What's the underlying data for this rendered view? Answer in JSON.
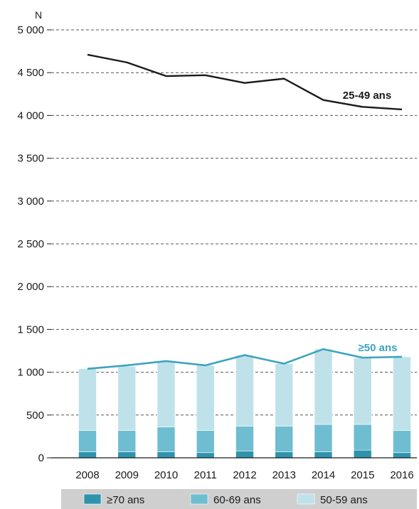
{
  "chart_data": {
    "type": "bar",
    "title": "",
    "xlabel": "",
    "ylabel": "N",
    "ylim": [
      0,
      5000
    ],
    "yticks": [
      0,
      500,
      1000,
      1500,
      2000,
      2500,
      3000,
      3500,
      4000,
      4500,
      5000
    ],
    "ytick_labels": [
      "0",
      "500",
      "1 000",
      "1 500",
      "2 000",
      "2 500",
      "3 000",
      "3 500",
      "4 000",
      "4 500",
      "5 000"
    ],
    "categories": [
      "2008",
      "2009",
      "2010",
      "2011",
      "2012",
      "2013",
      "2014",
      "2015",
      "2016"
    ],
    "grid": true,
    "stacked_bars": [
      {
        "name": "≥70 ans",
        "color": "#2f93ad",
        "values": [
          70,
          70,
          70,
          60,
          80,
          70,
          70,
          90,
          60
        ]
      },
      {
        "name": "60-69 ans",
        "color": "#6fbdd1",
        "values": [
          250,
          250,
          290,
          260,
          290,
          300,
          320,
          300,
          260
        ]
      },
      {
        "name": "50-59 ans",
        "color": "#bfe2ea",
        "values": [
          720,
          750,
          770,
          760,
          830,
          730,
          880,
          780,
          860
        ]
      }
    ],
    "lines": [
      {
        "name": "25-49 ans",
        "color": "#1a1a1a",
        "values": [
          4710,
          4620,
          4460,
          4470,
          4380,
          4430,
          4180,
          4100,
          4070
        ]
      },
      {
        "name": "≥50 ans",
        "color": "#3ea3bf",
        "values": [
          1040,
          1080,
          1130,
          1080,
          1200,
          1100,
          1270,
          1170,
          1180
        ]
      }
    ],
    "legend_position": "bottom"
  }
}
